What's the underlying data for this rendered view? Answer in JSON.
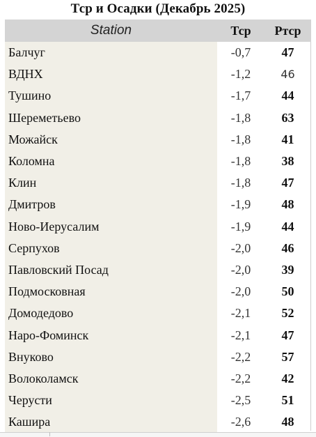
{
  "title": "Тср и Осадки (Декабрь 2025)",
  "table": {
    "headers": {
      "station": "Station",
      "temp": "Тср",
      "precip": "Ртср"
    },
    "rows": [
      {
        "station": "Балчуг",
        "temp": "-0,7",
        "precip": "47"
      },
      {
        "station": "ВДНХ",
        "temp": "-1,2",
        "precip": "46"
      },
      {
        "station": "Тушино",
        "temp": "-1,7",
        "precip": "44"
      },
      {
        "station": "Шереметьево",
        "temp": "-1,8",
        "precip": "63"
      },
      {
        "station": "Можайск",
        "temp": "-1,8",
        "precip": "41"
      },
      {
        "station": "Коломна",
        "temp": "-1,8",
        "precip": "38"
      },
      {
        "station": "Клин",
        "temp": "-1,8",
        "precip": "47"
      },
      {
        "station": "Дмитров",
        "temp": "-1,9",
        "precip": "48"
      },
      {
        "station": "Ново-Иерусалим",
        "temp": "-1,9",
        "precip": "44"
      },
      {
        "station": "Серпухов",
        "temp": "-2,0",
        "precip": "46"
      },
      {
        "station": "Павловский Посад",
        "temp": "-2,0",
        "precip": "39"
      },
      {
        "station": "Подмосковная",
        "temp": "-2,0",
        "precip": "50"
      },
      {
        "station": "Домодедово",
        "temp": "-2,1",
        "precip": "52"
      },
      {
        "station": "Наро-Фоминск",
        "temp": "-2,1",
        "precip": "47"
      },
      {
        "station": "Внуково",
        "temp": "-2,2",
        "precip": "57"
      },
      {
        "station": "Волоколамск",
        "temp": "-2,2",
        "precip": "42"
      },
      {
        "station": "Черусти",
        "temp": "-2,5",
        "precip": "51"
      },
      {
        "station": "Кашира",
        "temp": "-2,6",
        "precip": "48"
      }
    ]
  }
}
